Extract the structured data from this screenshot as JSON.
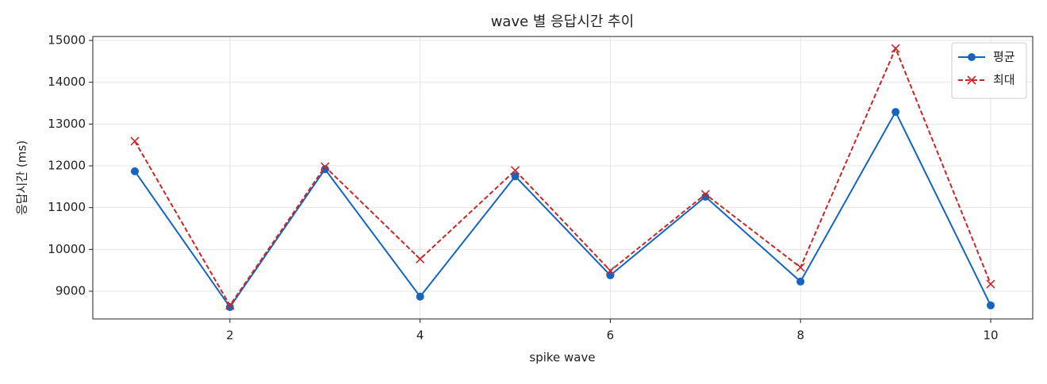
{
  "chart_data": {
    "type": "line",
    "title": "wave 별 응답시간 추이",
    "x_label": "spike wave",
    "y_label": "응답시간 (ms)",
    "x": [
      1,
      2,
      3,
      4,
      5,
      6,
      7,
      8,
      9,
      10
    ],
    "series": [
      {
        "name": "평균",
        "color": "#1565c0",
        "marker": "o",
        "linestyle": "solid",
        "values": [
          11870,
          8620,
          11920,
          8870,
          11750,
          9380,
          11260,
          9230,
          13290,
          8660
        ]
      },
      {
        "name": "최대",
        "color": "#c62828",
        "marker": "x",
        "linestyle": "dashed",
        "values": [
          12590,
          8660,
          11980,
          9770,
          11890,
          9490,
          11320,
          9570,
          14810,
          9170
        ]
      }
    ],
    "xlim": [
      0.558,
      10.442
    ],
    "ylim": [
      8336,
      15095
    ],
    "xticks": [
      2,
      4,
      6,
      8,
      10
    ],
    "yticks": [
      9000,
      10000,
      11000,
      12000,
      13000,
      14000,
      15000
    ],
    "grid": true,
    "legend": "upper right"
  }
}
